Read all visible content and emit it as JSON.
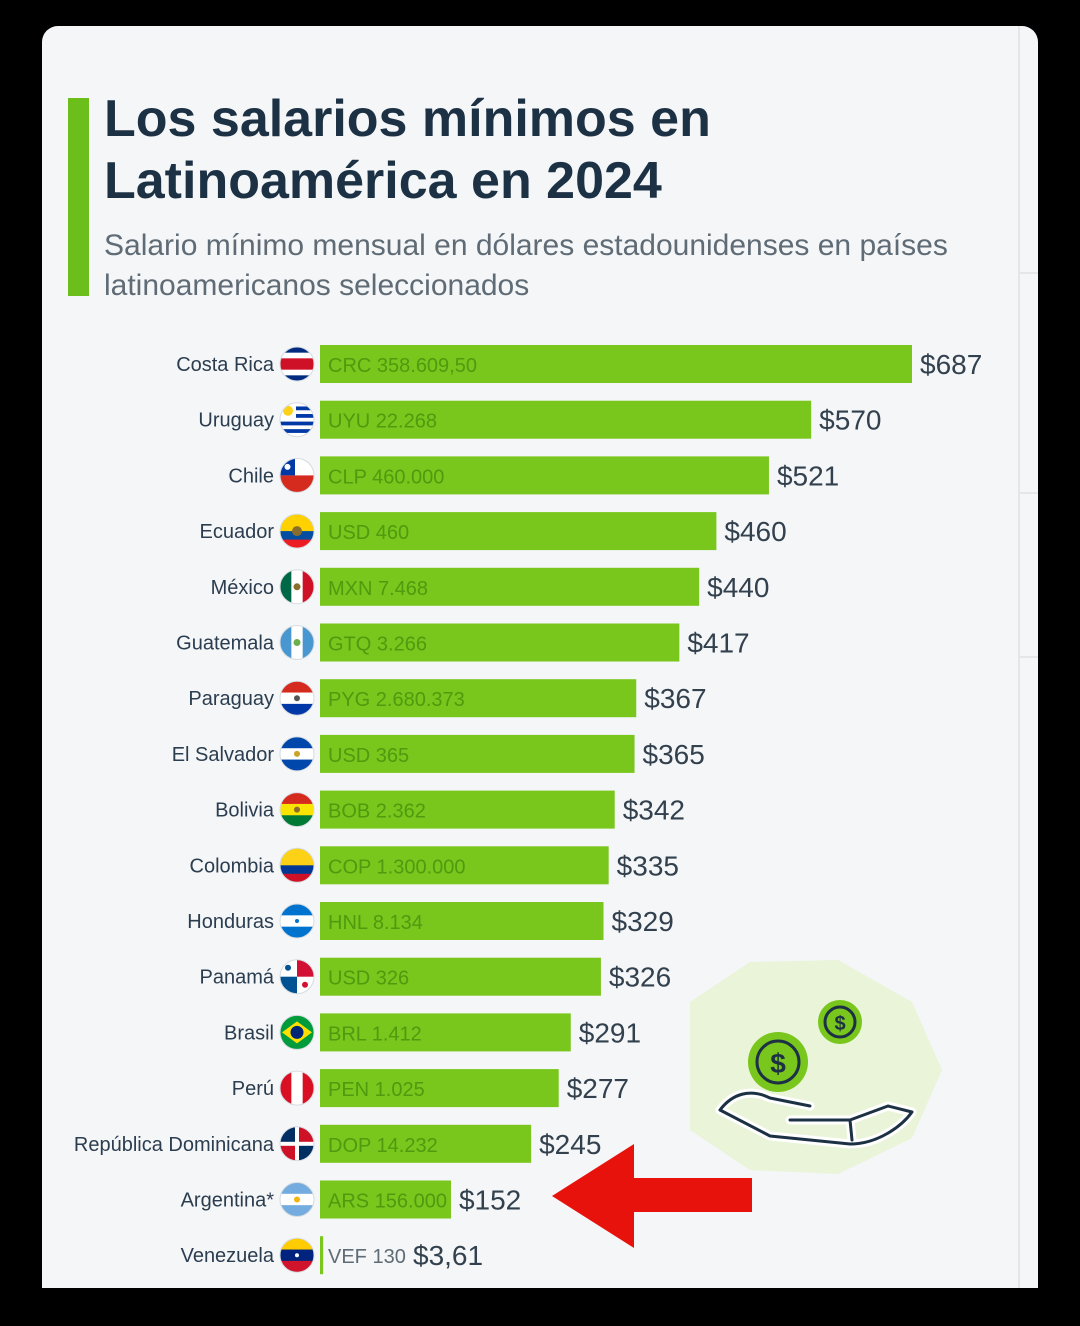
{
  "title": "Los salarios mínimos en Latinoamérica en 2024",
  "subtitle": "Salario mínimo mensual en dólares estadounidenses en países latinoamericanos seleccionados",
  "colors": {
    "bar": "#79c61d",
    "bar_text": "#4f9a0e",
    "accent": "#6cbf1a",
    "highlight_arrow": "#e8120c",
    "background": "#f4f6f8"
  },
  "icons": [
    "coins-hand-icon",
    "arrow-left-icon"
  ],
  "chart_data": {
    "type": "bar",
    "orientation": "horizontal",
    "categories": [
      "Costa Rica",
      "Uruguay",
      "Chile",
      "Ecuador",
      "México",
      "Guatemala",
      "Paraguay",
      "El Salvador",
      "Bolivia",
      "Colombia",
      "Honduras",
      "Panamá",
      "Brasil",
      "Perú",
      "República Dominicana",
      "Argentina*",
      "Venezuela"
    ],
    "values": [
      687,
      570,
      521,
      460,
      440,
      417,
      367,
      365,
      342,
      335,
      329,
      326,
      291,
      277,
      245,
      152,
      3.61
    ],
    "value_labels": [
      "$687",
      "$570",
      "$521",
      "$460",
      "$440",
      "$417",
      "$367",
      "$365",
      "$342",
      "$335",
      "$329",
      "$326",
      "$291",
      "$277",
      "$245",
      "$152",
      "$3,61"
    ],
    "local_currency_labels": [
      "CRC 358.609,50",
      "UYU 22.268",
      "CLP 460.000",
      "USD 460",
      "MXN 7.468",
      "GTQ 3.266",
      "PYG 2.680.373",
      "USD 365",
      "BOB 2.362",
      "COP 1.300.000",
      "HNL 8.134",
      "USD 326",
      "BRL 1.412",
      "PEN 1.025",
      "DOP 14.232",
      "ARS 156.000",
      "VEF 130"
    ],
    "flags": [
      "costa-rica",
      "uruguay",
      "chile",
      "ecuador",
      "mexico",
      "guatemala",
      "paraguay",
      "el-salvador",
      "bolivia",
      "colombia",
      "honduras",
      "panama",
      "brasil",
      "peru",
      "republica-dominicana",
      "argentina",
      "venezuela"
    ],
    "highlighted": "Argentina*",
    "grid": false,
    "legend": "none"
  }
}
